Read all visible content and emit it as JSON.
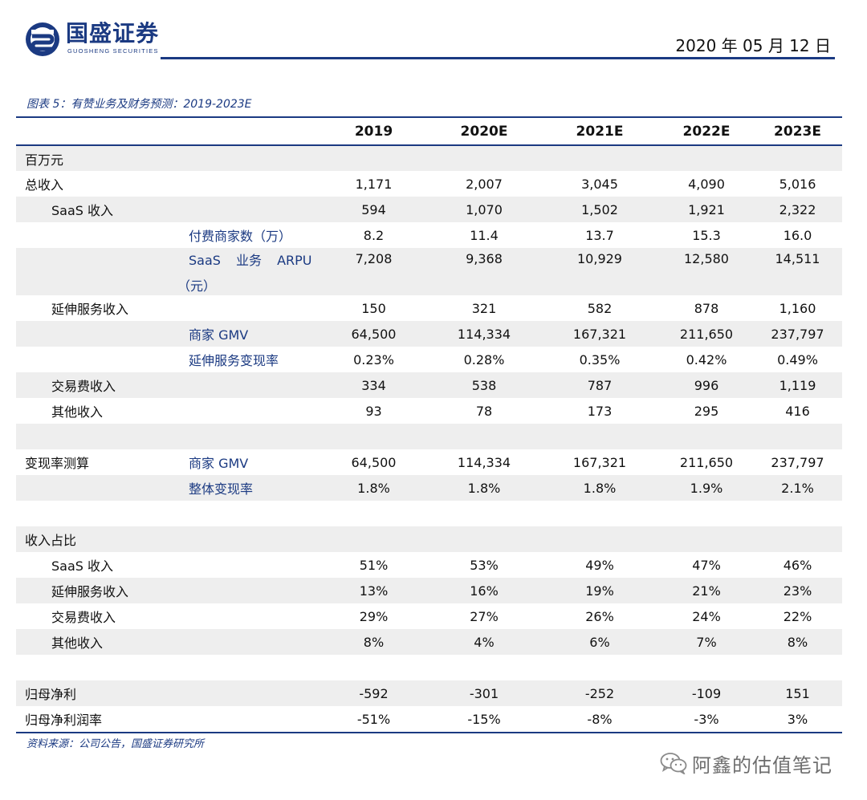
{
  "header": {
    "logo_cn": "国盛证券",
    "logo_en": "GUOSHENG SECURITIES",
    "date": "2020 年 05 月 12 日",
    "logo_icon": "guosheng-logo-icon",
    "accent_color": "#1b3a82"
  },
  "caption": "图表 5：有赞业务及财务预测：2019-2023E",
  "table": {
    "columns": [
      "2019",
      "2020E",
      "2021E",
      "2022E",
      "2023E"
    ],
    "rows": [
      {
        "label1": "百万元",
        "label2": "",
        "values": [
          "",
          "",
          "",
          "",
          ""
        ]
      },
      {
        "label1": "总收入",
        "label2": "",
        "values": [
          "1,171",
          "2,007",
          "3,045",
          "4,090",
          "5,016"
        ]
      },
      {
        "label1": "SaaS 收入",
        "label2": "",
        "values": [
          "594",
          "1,070",
          "1,502",
          "1,921",
          "2,322"
        ]
      },
      {
        "label1": "",
        "label2": "付费商家数（万）",
        "values": [
          "8.2",
          "11.4",
          "13.7",
          "15.3",
          "16.0"
        ]
      },
      {
        "label1": "",
        "label2": "SaaS 业务 ARPU",
        "label2b": "（元）",
        "values": [
          "7,208",
          "9,368",
          "10,929",
          "12,580",
          "14,511"
        ]
      },
      {
        "label1": "延伸服务收入",
        "label2": "",
        "values": [
          "150",
          "321",
          "582",
          "878",
          "1,160"
        ]
      },
      {
        "label1": "",
        "label2": "商家 GMV",
        "values": [
          "64,500",
          "114,334",
          "167,321",
          "211,650",
          "237,797"
        ]
      },
      {
        "label1": "",
        "label2": "延伸服务变现率",
        "values": [
          "0.23%",
          "0.28%",
          "0.35%",
          "0.42%",
          "0.49%"
        ]
      },
      {
        "label1": "交易费收入",
        "label2": "",
        "values": [
          "334",
          "538",
          "787",
          "996",
          "1,119"
        ]
      },
      {
        "label1": "其他收入",
        "label2": "",
        "values": [
          "93",
          "78",
          "173",
          "295",
          "416"
        ]
      },
      {
        "label1": "",
        "label2": "",
        "values": [
          "",
          "",
          "",
          "",
          ""
        ]
      },
      {
        "label1": "变现率测算",
        "label2": "商家 GMV",
        "values": [
          "64,500",
          "114,334",
          "167,321",
          "211,650",
          "237,797"
        ]
      },
      {
        "label1": "",
        "label2": "整体变现率",
        "values": [
          "1.8%",
          "1.8%",
          "1.8%",
          "1.9%",
          "2.1%"
        ]
      },
      {
        "label1": "",
        "label2": "",
        "values": [
          "",
          "",
          "",
          "",
          ""
        ]
      },
      {
        "label1": "收入占比",
        "label2": "",
        "values": [
          "",
          "",
          "",
          "",
          ""
        ]
      },
      {
        "label1": "SaaS 收入",
        "label2": "",
        "values": [
          "51%",
          "53%",
          "49%",
          "47%",
          "46%"
        ]
      },
      {
        "label1": "延伸服务收入",
        "label2": "",
        "values": [
          "13%",
          "16%",
          "19%",
          "21%",
          "23%"
        ]
      },
      {
        "label1": "交易费收入",
        "label2": "",
        "values": [
          "29%",
          "27%",
          "26%",
          "24%",
          "22%"
        ]
      },
      {
        "label1": "其他收入",
        "label2": "",
        "values": [
          "8%",
          "4%",
          "6%",
          "7%",
          "8%"
        ]
      },
      {
        "label1": "",
        "label2": "",
        "values": [
          "",
          "",
          "",
          "",
          ""
        ]
      },
      {
        "label1": "归母净利",
        "label2": "",
        "values": [
          "-592",
          "-301",
          "-252",
          "-109",
          "151"
        ]
      },
      {
        "label1": "归母净利润率",
        "label2": "",
        "values": [
          "-51%",
          "-15%",
          "-8%",
          "-3%",
          "3%"
        ]
      }
    ]
  },
  "source": "资料来源：公司公告，国盛证券研究所",
  "watermark": {
    "text": "阿鑫的估值笔记",
    "icon": "wechat-icon"
  }
}
